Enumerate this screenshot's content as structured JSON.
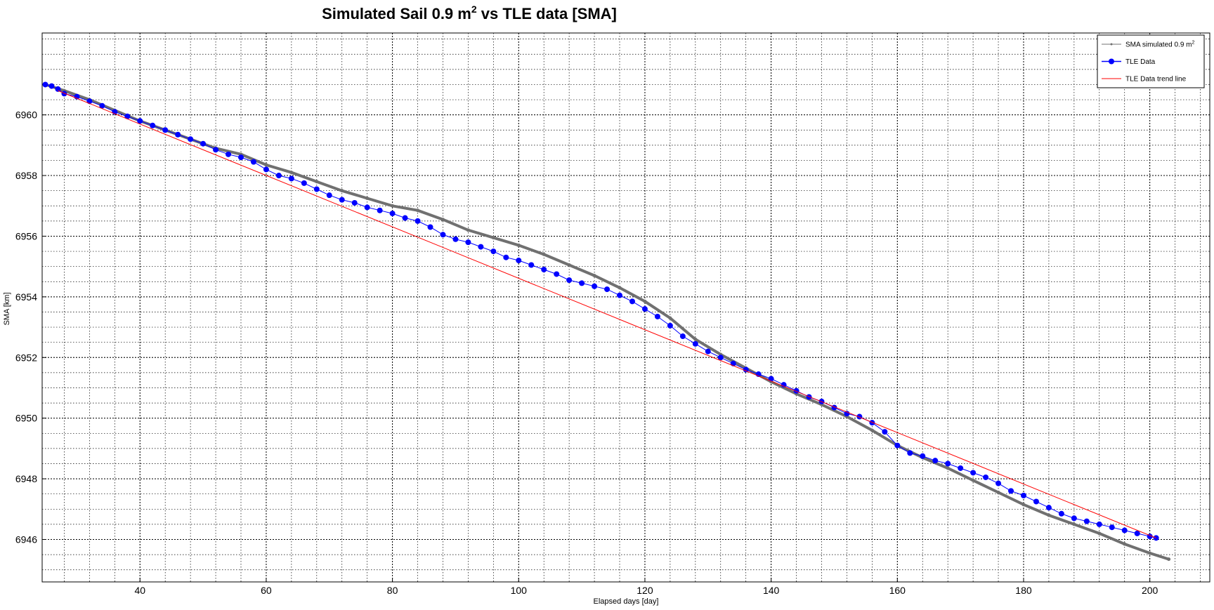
{
  "chart_data": {
    "type": "line",
    "title": "Simulated Sail 0.9 m",
    "title_superscript": "2",
    "title_suffix": " vs TLE data [SMA]",
    "xlabel": "Elapsed days [day]",
    "ylabel": "SMA [km]",
    "xlim": [
      24.5,
      209.5
    ],
    "ylim": [
      6944.6,
      6962.7
    ],
    "xticks": [
      40,
      60,
      80,
      100,
      120,
      140,
      160,
      180,
      200
    ],
    "xtick_labels": [
      "40",
      "60",
      "80",
      "100",
      "120",
      "140",
      "160",
      "180",
      "200"
    ],
    "yticks": [
      6946,
      6948,
      6950,
      6952,
      6954,
      6956,
      6958,
      6960
    ],
    "ytick_labels": [
      "6946",
      "6948",
      "6950",
      "6952",
      "6954",
      "6956",
      "6958",
      "6960"
    ],
    "grid": true,
    "legend_position": "top-right",
    "series": [
      {
        "name": "SMA simulated 0.9 m",
        "name_superscript": "2",
        "color": "#707070",
        "marker": "small-dot",
        "x": [
          25,
          28,
          32,
          36,
          40,
          44,
          48,
          52,
          56,
          60,
          64,
          68,
          72,
          76,
          80,
          84,
          88,
          92,
          96,
          100,
          104,
          108,
          112,
          116,
          120,
          124,
          128,
          132,
          136,
          140,
          144,
          148,
          152,
          156,
          160,
          164,
          168,
          172,
          176,
          180,
          184,
          188,
          192,
          196,
          200,
          203
        ],
        "y": [
          6961.0,
          6960.8,
          6960.5,
          6960.15,
          6959.8,
          6959.5,
          6959.2,
          6958.9,
          6958.7,
          6958.35,
          6958.1,
          6957.8,
          6957.5,
          6957.25,
          6957.0,
          6956.85,
          6956.55,
          6956.2,
          6955.95,
          6955.7,
          6955.4,
          6955.05,
          6954.7,
          6954.3,
          6953.85,
          6953.3,
          6952.6,
          6952.1,
          6951.65,
          6951.2,
          6950.8,
          6950.45,
          6950.05,
          6949.6,
          6949.1,
          6948.7,
          6948.35,
          6947.95,
          6947.55,
          6947.15,
          6946.8,
          6946.5,
          6946.2,
          6945.85,
          6945.55,
          6945.35
        ]
      },
      {
        "name": "TLE Data",
        "color": "#0000ff",
        "marker": "circle",
        "x": [
          25,
          26,
          27,
          28,
          30,
          32,
          34,
          36,
          38,
          40,
          42,
          44,
          46,
          48,
          50,
          52,
          54,
          56,
          58,
          60,
          62,
          64,
          66,
          68,
          70,
          72,
          74,
          76,
          78,
          80,
          82,
          84,
          86,
          88,
          90,
          92,
          94,
          96,
          98,
          100,
          102,
          104,
          106,
          108,
          110,
          112,
          114,
          116,
          118,
          120,
          122,
          124,
          126,
          128,
          130,
          132,
          134,
          136,
          138,
          140,
          142,
          144,
          146,
          148,
          150,
          152,
          154,
          156,
          158,
          160,
          162,
          164,
          166,
          168,
          170,
          172,
          174,
          176,
          178,
          180,
          182,
          184,
          186,
          188,
          190,
          192,
          194,
          196,
          198,
          200,
          201
        ],
        "y": [
          6961.0,
          6960.95,
          6960.85,
          6960.7,
          6960.6,
          6960.45,
          6960.3,
          6960.1,
          6959.95,
          6959.8,
          6959.65,
          6959.5,
          6959.35,
          6959.2,
          6959.05,
          6958.85,
          6958.7,
          6958.6,
          6958.45,
          6958.2,
          6958.0,
          6957.9,
          6957.75,
          6957.55,
          6957.35,
          6957.2,
          6957.1,
          6956.95,
          6956.85,
          6956.75,
          6956.6,
          6956.5,
          6956.3,
          6956.05,
          6955.9,
          6955.8,
          6955.65,
          6955.5,
          6955.3,
          6955.2,
          6955.05,
          6954.9,
          6954.75,
          6954.55,
          6954.45,
          6954.35,
          6954.25,
          6954.05,
          6953.85,
          6953.6,
          6953.35,
          6953.05,
          6952.7,
          6952.45,
          6952.2,
          6952.0,
          6951.8,
          6951.6,
          6951.45,
          6951.3,
          6951.1,
          6950.9,
          6950.7,
          6950.55,
          6950.35,
          6950.15,
          6950.05,
          6949.85,
          6949.55,
          6949.1,
          6948.85,
          6948.75,
          6948.6,
          6948.5,
          6948.35,
          6948.2,
          6948.05,
          6947.85,
          6947.6,
          6947.45,
          6947.25,
          6947.05,
          6946.85,
          6946.7,
          6946.6,
          6946.5,
          6946.4,
          6946.3,
          6946.2,
          6946.1,
          6946.05
        ]
      },
      {
        "name": "TLE Data trend line",
        "color": "#ff0000",
        "marker": "none",
        "x": [
          27,
          201
        ],
        "y": [
          6960.8,
          6946.05
        ]
      }
    ]
  }
}
